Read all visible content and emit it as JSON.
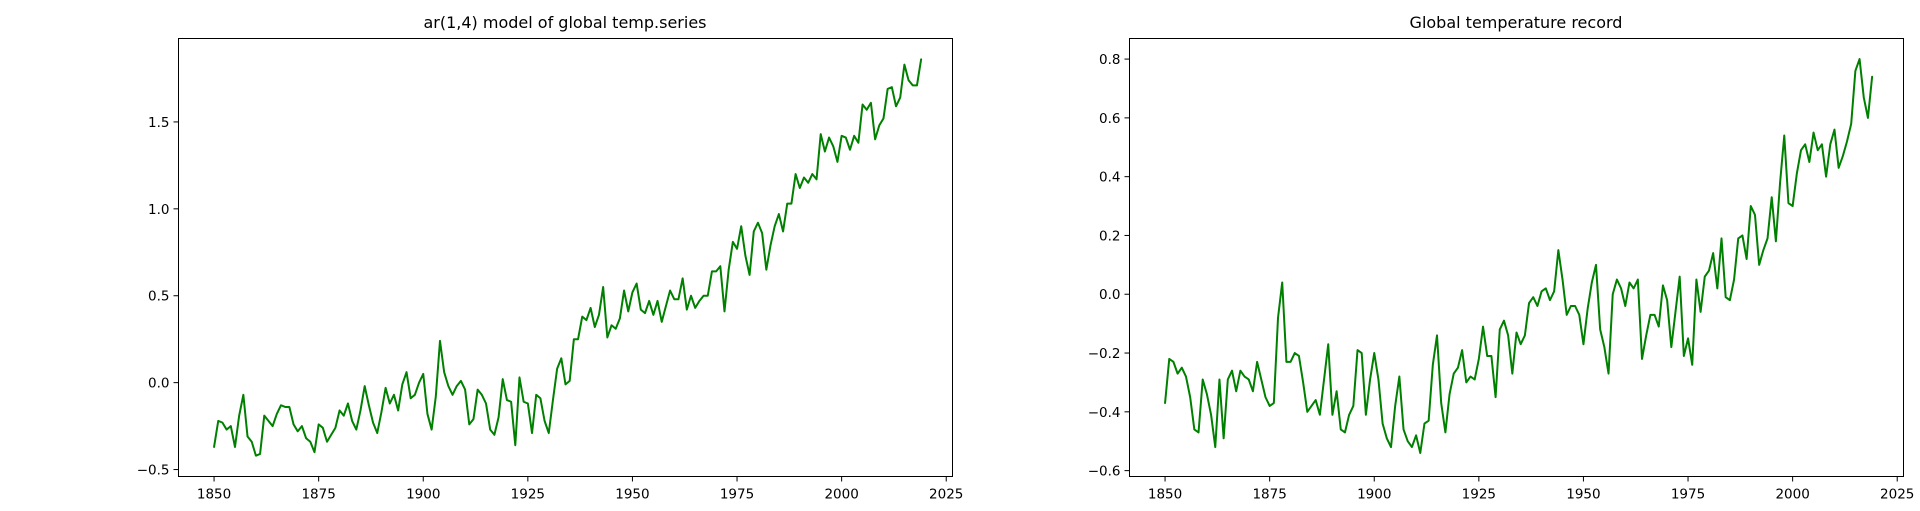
{
  "chart_data": [
    {
      "type": "line",
      "title": "ar(1,4) model of global temp.series",
      "xlabel": "",
      "ylabel": "",
      "xlim": [
        1841.5,
        2026.5
      ],
      "ylim": [
        -0.54,
        1.98
      ],
      "xticks": [
        1850,
        1875,
        1900,
        1925,
        1950,
        1975,
        2000,
        2025
      ],
      "xtick_labels": [
        "1850",
        "1875",
        "1900",
        "1925",
        "1950",
        "1975",
        "2000",
        "2025"
      ],
      "yticks": [
        -0.5,
        0.0,
        0.5,
        1.0,
        1.5
      ],
      "ytick_labels": [
        "−0.5",
        "0.0",
        "0.5",
        "1.0",
        "1.5"
      ],
      "grid": false,
      "color": "#008000",
      "series": [
        {
          "x_start": 1850,
          "x_step": 1,
          "values": [
            -0.37,
            -0.22,
            -0.23,
            -0.27,
            -0.25,
            -0.37,
            -0.19,
            -0.07,
            -0.31,
            -0.34,
            -0.42,
            -0.41,
            -0.19,
            -0.22,
            -0.25,
            -0.18,
            -0.13,
            -0.14,
            -0.14,
            -0.24,
            -0.28,
            -0.25,
            -0.32,
            -0.34,
            -0.4,
            -0.24,
            -0.26,
            -0.34,
            -0.3,
            -0.26,
            -0.16,
            -0.19,
            -0.12,
            -0.22,
            -0.27,
            -0.16,
            -0.02,
            -0.13,
            -0.23,
            -0.29,
            -0.17,
            -0.03,
            -0.12,
            -0.07,
            -0.16,
            -0.01,
            0.06,
            -0.09,
            -0.07,
            0.0,
            0.05,
            -0.18,
            -0.27,
            -0.08,
            0.24,
            0.06,
            -0.02,
            -0.07,
            -0.02,
            0.01,
            -0.04,
            -0.24,
            -0.21,
            -0.04,
            -0.07,
            -0.12,
            -0.27,
            -0.3,
            -0.2,
            0.02,
            -0.1,
            -0.11,
            -0.36,
            0.03,
            -0.11,
            -0.12,
            -0.29,
            -0.07,
            -0.09,
            -0.22,
            -0.29,
            -0.1,
            0.08,
            0.14,
            -0.01,
            0.01,
            0.25,
            0.25,
            0.38,
            0.36,
            0.43,
            0.32,
            0.39,
            0.55,
            0.26,
            0.33,
            0.31,
            0.37,
            0.53,
            0.41,
            0.52,
            0.57,
            0.42,
            0.4,
            0.47,
            0.39,
            0.47,
            0.35,
            0.44,
            0.53,
            0.48,
            0.48,
            0.6,
            0.42,
            0.5,
            0.43,
            0.47,
            0.5,
            0.5,
            0.64,
            0.64,
            0.67,
            0.41,
            0.65,
            0.81,
            0.77,
            0.9,
            0.73,
            0.62,
            0.87,
            0.92,
            0.86,
            0.65,
            0.79,
            0.9,
            0.97,
            0.87,
            1.03,
            1.03,
            1.2,
            1.12,
            1.18,
            1.15,
            1.2,
            1.17,
            1.43,
            1.33,
            1.41,
            1.36,
            1.27,
            1.42,
            1.41,
            1.34,
            1.42,
            1.38,
            1.6,
            1.57,
            1.61,
            1.4,
            1.48,
            1.52,
            1.69,
            1.7,
            1.59,
            1.64,
            1.83,
            1.74,
            1.71,
            1.71,
            1.86
          ]
        }
      ]
    },
    {
      "type": "line",
      "title": "Global temperature record",
      "xlabel": "",
      "ylabel": "",
      "xlim": [
        1841.5,
        2026.5
      ],
      "ylim": [
        -0.62,
        0.87
      ],
      "xticks": [
        1850,
        1875,
        1900,
        1925,
        1950,
        1975,
        2000,
        2025
      ],
      "xtick_labels": [
        "1850",
        "1875",
        "1900",
        "1925",
        "1950",
        "1975",
        "2000",
        "2025"
      ],
      "yticks": [
        -0.6,
        -0.4,
        -0.2,
        0.0,
        0.2,
        0.4,
        0.6,
        0.8
      ],
      "ytick_labels": [
        "−0.6",
        "−0.4",
        "−0.2",
        "0.0",
        "0.2",
        "0.4",
        "0.6",
        "0.8"
      ],
      "grid": false,
      "color": "#008000",
      "series": [
        {
          "x_start": 1850,
          "x_step": 1,
          "values": [
            -0.37,
            -0.22,
            -0.23,
            -0.27,
            -0.25,
            -0.28,
            -0.35,
            -0.46,
            -0.47,
            -0.29,
            -0.34,
            -0.41,
            -0.52,
            -0.29,
            -0.49,
            -0.29,
            -0.26,
            -0.33,
            -0.26,
            -0.28,
            -0.29,
            -0.33,
            -0.23,
            -0.29,
            -0.35,
            -0.38,
            -0.37,
            -0.08,
            0.04,
            -0.23,
            -0.23,
            -0.2,
            -0.21,
            -0.3,
            -0.4,
            -0.38,
            -0.36,
            -0.41,
            -0.29,
            -0.17,
            -0.41,
            -0.33,
            -0.46,
            -0.47,
            -0.41,
            -0.38,
            -0.19,
            -0.2,
            -0.41,
            -0.29,
            -0.2,
            -0.29,
            -0.44,
            -0.49,
            -0.52,
            -0.38,
            -0.28,
            -0.46,
            -0.5,
            -0.52,
            -0.48,
            -0.54,
            -0.44,
            -0.43,
            -0.24,
            -0.14,
            -0.37,
            -0.47,
            -0.34,
            -0.27,
            -0.25,
            -0.19,
            -0.3,
            -0.28,
            -0.29,
            -0.22,
            -0.11,
            -0.21,
            -0.21,
            -0.35,
            -0.12,
            -0.09,
            -0.14,
            -0.27,
            -0.13,
            -0.17,
            -0.14,
            -0.03,
            -0.01,
            -0.04,
            0.01,
            0.02,
            -0.02,
            0.01,
            0.15,
            0.05,
            -0.07,
            -0.04,
            -0.04,
            -0.07,
            -0.17,
            -0.05,
            0.04,
            0.1,
            -0.12,
            -0.18,
            -0.27,
            0.0,
            0.05,
            0.02,
            -0.04,
            0.04,
            0.02,
            0.05,
            -0.22,
            -0.14,
            -0.07,
            -0.07,
            -0.11,
            0.03,
            -0.02,
            -0.18,
            -0.06,
            0.06,
            -0.21,
            -0.15,
            -0.24,
            0.05,
            -0.06,
            0.06,
            0.08,
            0.14,
            0.02,
            0.19,
            -0.01,
            -0.02,
            0.05,
            0.19,
            0.2,
            0.12,
            0.3,
            0.27,
            0.1,
            0.15,
            0.19,
            0.33,
            0.18,
            0.38,
            0.54,
            0.31,
            0.3,
            0.41,
            0.49,
            0.51,
            0.45,
            0.55,
            0.49,
            0.51,
            0.4,
            0.51,
            0.56,
            0.43,
            0.47,
            0.52,
            0.58,
            0.76,
            0.8,
            0.67,
            0.6,
            0.74
          ]
        }
      ]
    }
  ]
}
